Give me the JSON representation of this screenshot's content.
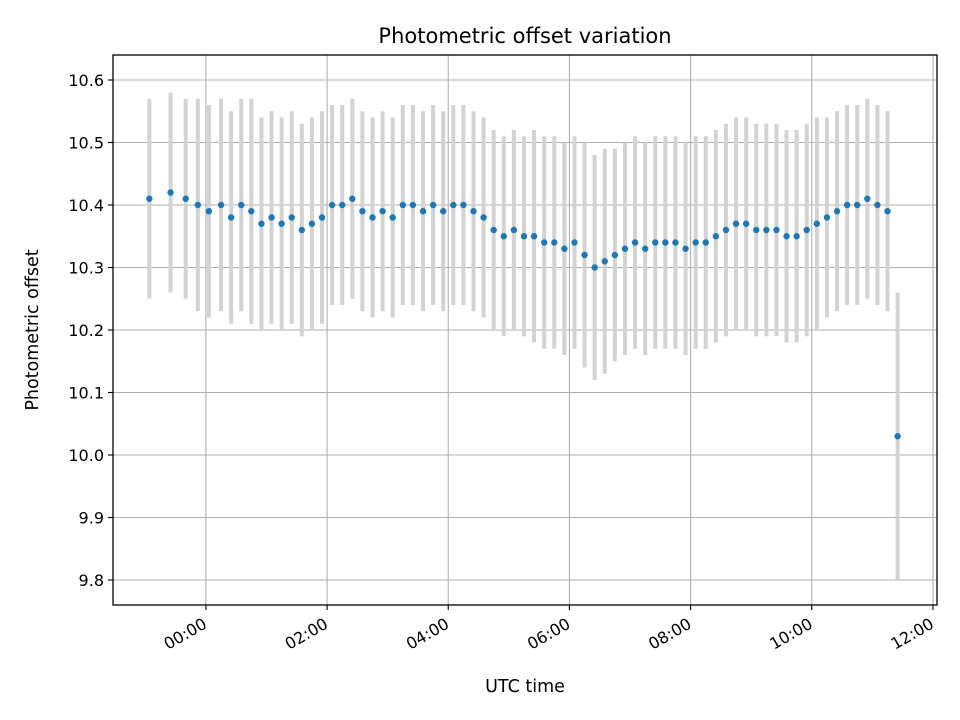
{
  "chart_data": {
    "type": "scatter",
    "title": "Photometric offset variation",
    "xlabel": "UTC time",
    "ylabel": "Photometric offset",
    "x_ticks": [
      "00:00",
      "02:00",
      "04:00",
      "06:00",
      "08:00",
      "10:00",
      "12:00"
    ],
    "y_ticks": [
      "9.8",
      "9.9",
      "10.0",
      "10.1",
      "10.2",
      "10.3",
      "10.4",
      "10.5",
      "10.6"
    ],
    "xlim": [
      "-01:32",
      "12:04"
    ],
    "ylim": [
      9.76,
      10.64
    ],
    "grid": true,
    "errorbars": true,
    "point_color": "#1f77b4",
    "errorbar_color": "#d3d3d3",
    "series": [
      {
        "x": [
          "-00:56",
          "-00:35",
          "-00:20",
          "-00:08",
          "00:03",
          "00:15",
          "00:25",
          "00:35",
          "00:45",
          "00:55",
          "01:05",
          "01:15",
          "01:25",
          "01:35",
          "01:45",
          "01:55",
          "02:05",
          "02:15",
          "02:25",
          "02:35",
          "02:45",
          "02:55",
          "03:05",
          "03:15",
          "03:25",
          "03:35",
          "03:45",
          "03:55",
          "04:05",
          "04:15",
          "04:25",
          "04:35",
          "04:45",
          "04:55",
          "05:05",
          "05:15",
          "05:25",
          "05:35",
          "05:45",
          "05:55",
          "06:05",
          "06:15",
          "06:25",
          "06:35",
          "06:45",
          "06:55",
          "07:05",
          "07:15",
          "07:25",
          "07:35",
          "07:45",
          "07:55",
          "08:05",
          "08:15",
          "08:25",
          "08:35",
          "08:45",
          "08:55",
          "09:05",
          "09:15",
          "09:25",
          "09:35",
          "09:45",
          "09:55",
          "10:05",
          "10:15",
          "10:25",
          "10:35",
          "10:45",
          "10:55",
          "11:05",
          "11:15",
          "11:25"
        ],
        "y": [
          10.41,
          10.42,
          10.41,
          10.4,
          10.39,
          10.4,
          10.38,
          10.4,
          10.39,
          10.37,
          10.38,
          10.37,
          10.38,
          10.36,
          10.37,
          10.38,
          10.4,
          10.4,
          10.41,
          10.39,
          10.38,
          10.39,
          10.38,
          10.4,
          10.4,
          10.39,
          10.4,
          10.39,
          10.4,
          10.4,
          10.39,
          10.38,
          10.36,
          10.35,
          10.36,
          10.35,
          10.35,
          10.34,
          10.34,
          10.33,
          10.34,
          10.32,
          10.3,
          10.31,
          10.32,
          10.33,
          10.34,
          10.33,
          10.34,
          10.34,
          10.34,
          10.33,
          10.34,
          10.34,
          10.35,
          10.36,
          10.37,
          10.37,
          10.36,
          10.36,
          10.36,
          10.35,
          10.35,
          10.36,
          10.37,
          10.38,
          10.39,
          10.4,
          10.4,
          10.41,
          10.4,
          10.39,
          10.03
        ],
        "error": [
          0.16,
          0.16,
          0.16,
          0.17,
          0.17,
          0.17,
          0.17,
          0.17,
          0.18,
          0.17,
          0.17,
          0.17,
          0.17,
          0.17,
          0.17,
          0.17,
          0.16,
          0.16,
          0.16,
          0.16,
          0.16,
          0.16,
          0.16,
          0.16,
          0.16,
          0.16,
          0.16,
          0.16,
          0.16,
          0.16,
          0.16,
          0.16,
          0.16,
          0.16,
          0.16,
          0.16,
          0.17,
          0.17,
          0.17,
          0.17,
          0.17,
          0.18,
          0.18,
          0.18,
          0.17,
          0.17,
          0.17,
          0.17,
          0.17,
          0.17,
          0.17,
          0.17,
          0.17,
          0.17,
          0.17,
          0.17,
          0.17,
          0.17,
          0.17,
          0.17,
          0.17,
          0.17,
          0.17,
          0.17,
          0.17,
          0.16,
          0.16,
          0.16,
          0.16,
          0.16,
          0.16,
          0.16,
          0.23
        ]
      }
    ]
  }
}
